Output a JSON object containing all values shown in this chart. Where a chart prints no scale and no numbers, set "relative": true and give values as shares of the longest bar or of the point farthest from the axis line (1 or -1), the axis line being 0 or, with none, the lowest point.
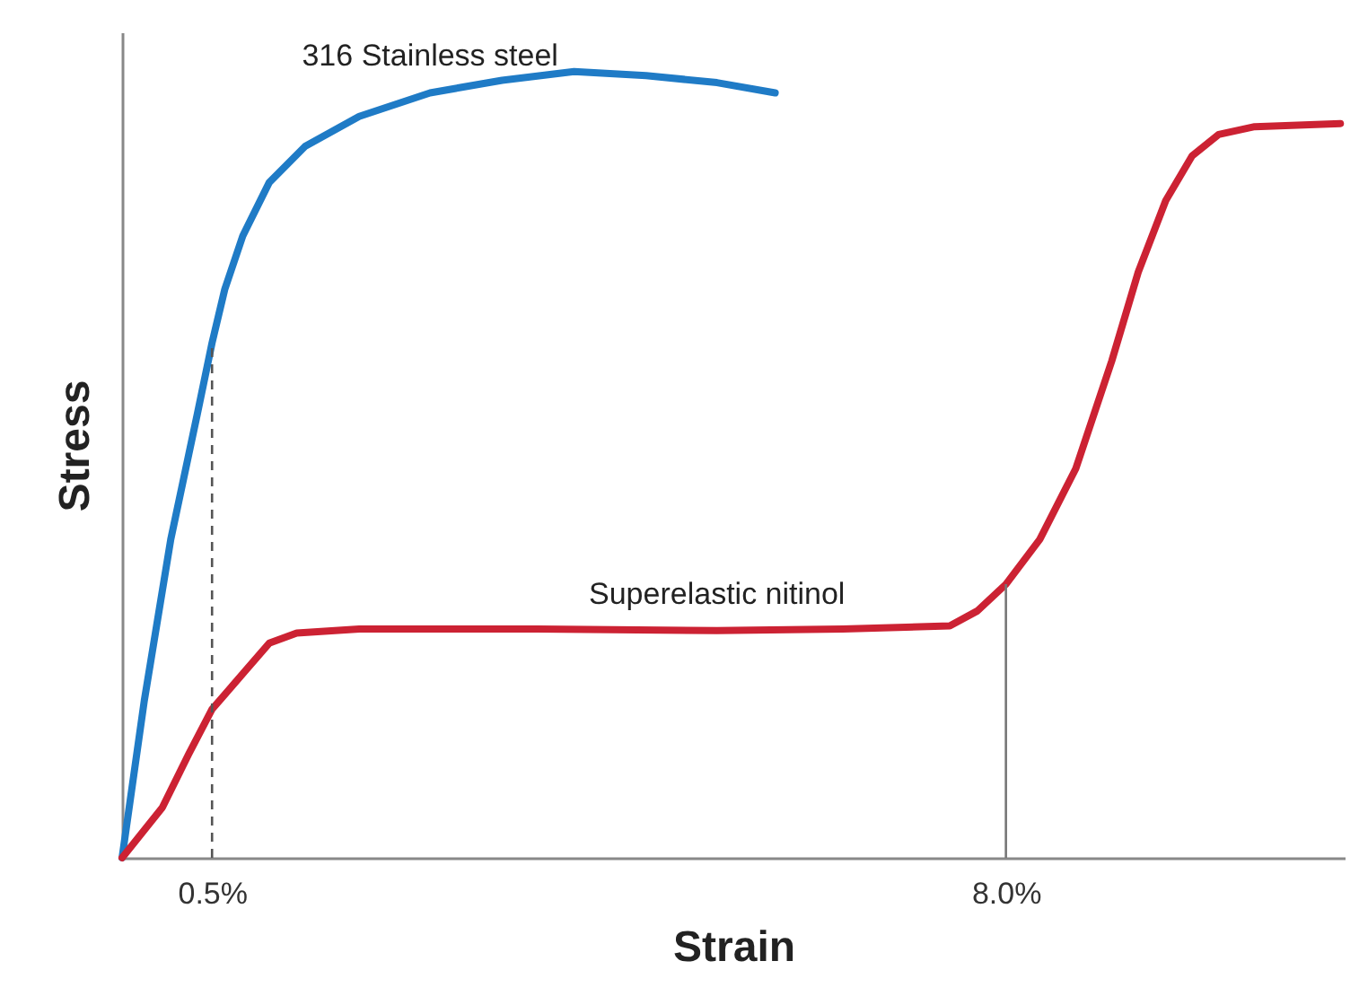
{
  "chart_data": {
    "type": "line",
    "relative": true,
    "xlabel": "Strain",
    "ylabel": "Stress",
    "xlim": [
      -0.35,
      11.2
    ],
    "xticks": [
      {
        "value": 0.5,
        "label": "0.5%"
      },
      {
        "value": 8.0,
        "label": "8.0%"
      }
    ],
    "grid": false,
    "marker": "none",
    "line_style": "solid",
    "series": [
      {
        "name": "316 Stainless steel",
        "color": "#1f7bc6",
        "x": [
          -0.35,
          -0.14,
          0.11,
          0.36,
          0.5,
          0.62,
          0.79,
          1.04,
          1.38,
          1.89,
          2.56,
          3.24,
          3.92,
          4.6,
          5.27,
          5.82
        ],
        "values": [
          0,
          0.2,
          0.405,
          0.564,
          0.655,
          0.723,
          0.791,
          0.859,
          0.905,
          0.943,
          0.973,
          0.989,
          1.0,
          0.995,
          0.986,
          0.973
        ]
      },
      {
        "name": "Superelastic nitinol",
        "color": "#cc2233",
        "x": [
          -0.35,
          0.03,
          0.28,
          0.5,
          0.79,
          1.04,
          1.3,
          1.89,
          3.58,
          5.27,
          6.46,
          7.47,
          7.73,
          8.0,
          8.32,
          8.66,
          9.0,
          9.25,
          9.51,
          9.76,
          10.01,
          10.35,
          11.16
        ],
        "values": [
          0,
          0.064,
          0.132,
          0.189,
          0.234,
          0.273,
          0.286,
          0.291,
          0.291,
          0.289,
          0.291,
          0.295,
          0.314,
          0.348,
          0.405,
          0.495,
          0.632,
          0.745,
          0.836,
          0.893,
          0.92,
          0.93,
          0.934
        ]
      }
    ],
    "ref_lines": [
      {
        "axis": "x",
        "value": 0.5,
        "line_style": "dashed",
        "color": "#555555"
      },
      {
        "axis": "x",
        "value": 8.0,
        "line_style": "solid",
        "color": "#777777"
      }
    ]
  }
}
